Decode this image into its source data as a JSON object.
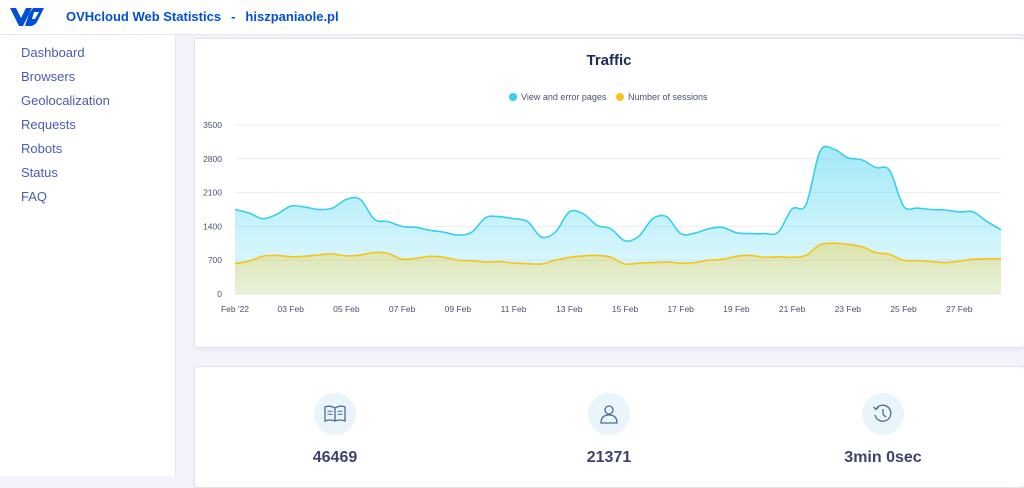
{
  "header": {
    "app_name": "OVHcloud Web Statistics",
    "separator": "-",
    "site": "hiszpaniaole.pl",
    "brand_color": "#0050d7"
  },
  "sidebar": {
    "items": [
      {
        "label": "Dashboard"
      },
      {
        "label": "Browsers"
      },
      {
        "label": "Geolocalization"
      },
      {
        "label": "Requests"
      },
      {
        "label": "Robots"
      },
      {
        "label": "Status"
      },
      {
        "label": "FAQ"
      }
    ]
  },
  "chart_data": {
    "type": "area",
    "title": "Traffic",
    "legend_position": "top-center",
    "grid": true,
    "ylim": [
      0,
      3500
    ],
    "yticks": [
      "0",
      "700",
      "1400",
      "2100",
      "2800",
      "3500"
    ],
    "xtick_labels": [
      "Feb '22",
      "03 Feb",
      "05 Feb",
      "07 Feb",
      "09 Feb",
      "11 Feb",
      "13 Feb",
      "15 Feb",
      "17 Feb",
      "19 Feb",
      "21 Feb",
      "23 Feb",
      "25 Feb",
      "27 Feb"
    ],
    "x": [
      1,
      1.5,
      2,
      2.5,
      3,
      3.5,
      4,
      4.5,
      5,
      5.5,
      6,
      6.5,
      7,
      7.5,
      8,
      8.5,
      9,
      9.5,
      10,
      10.5,
      11,
      11.5,
      12,
      12.5,
      13,
      13.5,
      14,
      14.5,
      15,
      15.5,
      16,
      16.5,
      17,
      17.5,
      18,
      18.5,
      19,
      19.5,
      20,
      20.5,
      21,
      21.5,
      22,
      22.5,
      23,
      23.5,
      24,
      24.5,
      25,
      25.5,
      26,
      26.5,
      27,
      27.5,
      28,
      28.5
    ],
    "series": [
      {
        "name": "View and error pages",
        "color": "#36cfee",
        "values": [
          1750,
          1680,
          1560,
          1650,
          1820,
          1800,
          1750,
          1780,
          1960,
          1960,
          1550,
          1500,
          1400,
          1380,
          1320,
          1280,
          1220,
          1280,
          1580,
          1600,
          1560,
          1500,
          1180,
          1280,
          1700,
          1660,
          1420,
          1350,
          1100,
          1200,
          1560,
          1600,
          1250,
          1260,
          1350,
          1380,
          1270,
          1250,
          1250,
          1280,
          1760,
          1850,
          2950,
          3000,
          2820,
          2780,
          2620,
          2560,
          1820,
          1780,
          1750,
          1740,
          1700,
          1700,
          1500,
          1330
        ]
      },
      {
        "name": "Number of sessions",
        "color": "#f5c518",
        "values": [
          630,
          680,
          780,
          800,
          770,
          780,
          810,
          830,
          790,
          810,
          860,
          840,
          720,
          740,
          780,
          760,
          700,
          690,
          660,
          670,
          640,
          630,
          620,
          700,
          760,
          790,
          800,
          760,
          620,
          640,
          650,
          660,
          640,
          650,
          700,
          720,
          780,
          800,
          760,
          770,
          760,
          800,
          1020,
          1050,
          1030,
          980,
          860,
          820,
          700,
          690,
          670,
          650,
          680,
          720,
          730,
          730
        ]
      }
    ]
  },
  "stats": [
    {
      "icon": "book-icon",
      "value": "46469"
    },
    {
      "icon": "user-icon",
      "value": "21371"
    },
    {
      "icon": "history-clock-icon",
      "value": "3min 0sec"
    }
  ]
}
